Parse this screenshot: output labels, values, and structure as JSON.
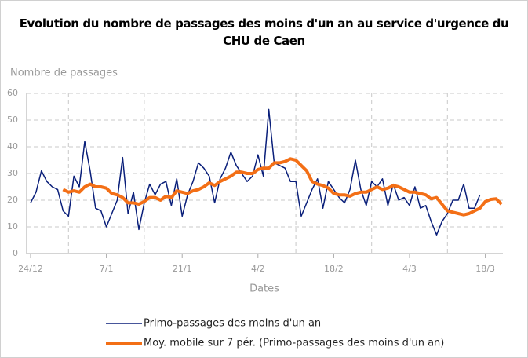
{
  "chart_data": {
    "type": "line",
    "title": "Evolution du nombre de passages des moins d'un an au service d'urgence du CHU de Caen",
    "y_label": "Nombre de passages",
    "x_label": "Dates",
    "categories": [
      "24/12",
      null,
      null,
      null,
      null,
      null,
      null,
      null,
      null,
      null,
      null,
      null,
      null,
      null,
      "7/1",
      null,
      null,
      null,
      null,
      null,
      null,
      null,
      null,
      null,
      null,
      null,
      null,
      null,
      "21/1",
      null,
      null,
      null,
      null,
      null,
      null,
      null,
      null,
      null,
      null,
      null,
      null,
      null,
      "4/2",
      null,
      null,
      null,
      null,
      null,
      null,
      null,
      null,
      null,
      null,
      null,
      null,
      null,
      "18/2",
      null,
      null,
      null,
      null,
      null,
      null,
      null,
      null,
      null,
      null,
      null,
      null,
      null,
      "4/3",
      null,
      null,
      null,
      null,
      null,
      null,
      null,
      null,
      null,
      null,
      null,
      null,
      null,
      "18/3",
      null,
      null,
      null
    ],
    "series": [
      {
        "name": "Primo-passages des moins d'un an",
        "color": "#0a1f7a",
        "width": 1.5,
        "values": [
          19,
          23,
          31,
          27,
          25,
          24,
          16,
          14,
          29,
          25,
          42,
          31,
          17,
          16,
          10,
          15,
          20,
          36,
          15,
          23,
          9,
          19,
          26,
          22,
          26,
          27,
          18,
          28,
          14,
          22,
          27,
          34,
          32,
          29,
          19,
          28,
          32,
          38,
          33,
          30,
          27,
          29,
          37,
          29,
          54,
          34,
          33,
          32,
          27,
          27,
          14,
          19,
          24,
          28,
          17,
          27,
          24,
          21,
          19,
          24,
          35,
          24,
          18,
          27,
          25,
          28,
          18,
          26,
          20,
          21,
          18,
          25,
          17,
          18,
          12,
          7,
          12,
          15,
          20,
          20,
          26,
          17,
          17,
          22,
          null,
          null,
          null,
          null
        ]
      },
      {
        "name": "Moy. mobile sur 7 pér. (Primo-passages des moins d'un an)",
        "color": "#f36f16",
        "width": 4,
        "values": [
          null,
          null,
          null,
          null,
          null,
          null,
          24,
          23,
          23.5,
          23,
          25,
          26,
          25,
          25,
          24.5,
          22.5,
          22,
          21,
          19,
          19,
          18.5,
          19.5,
          21,
          21,
          20,
          21.5,
          21,
          23.5,
          23,
          22.5,
          23.5,
          24,
          25,
          26.5,
          25.5,
          27,
          28,
          29,
          30.5,
          30.5,
          30,
          30,
          31.5,
          32,
          32,
          34,
          34,
          34.5,
          35.5,
          35,
          33,
          31,
          27,
          26,
          25.5,
          24.5,
          22.5,
          22,
          22,
          21.5,
          22.5,
          23,
          23,
          24,
          25,
          24,
          24.5,
          25.5,
          25,
          24,
          23,
          23,
          22.5,
          22,
          20.5,
          21,
          18.5,
          16,
          15.5,
          15,
          14.5,
          15,
          16,
          17,
          19.5,
          20.3,
          20.5,
          18.5
        ]
      }
    ],
    "ylim": [
      0,
      60
    ],
    "yticks": [
      0,
      10,
      20,
      30,
      40,
      50,
      60
    ],
    "grid": true
  }
}
